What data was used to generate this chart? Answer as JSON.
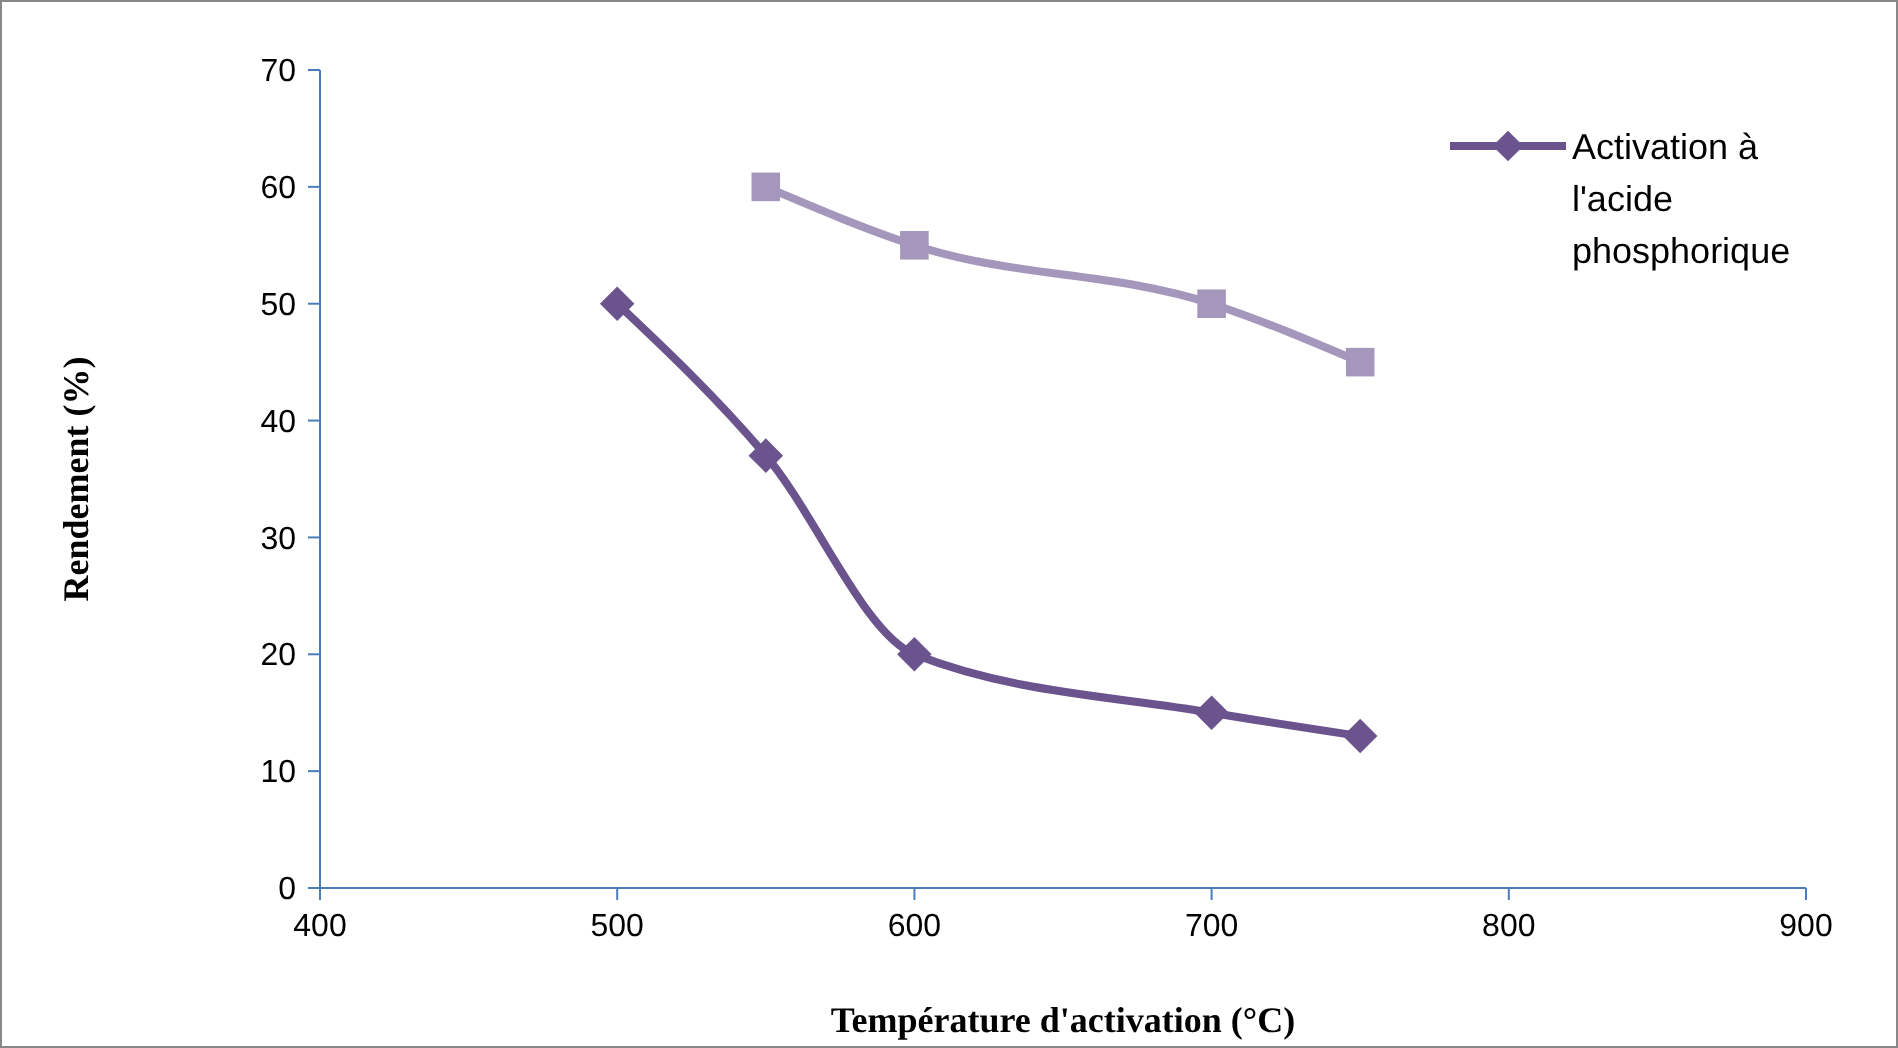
{
  "chart_data": {
    "type": "line",
    "xlabel": "Température d'activation (°C)",
    "ylabel": "Rendement  (%)",
    "xlim": [
      400,
      900
    ],
    "xticks": [
      400,
      500,
      600,
      700,
      800,
      900
    ],
    "ylim": [
      0,
      70
    ],
    "yticks": [
      0,
      10,
      20,
      30,
      40,
      50,
      60,
      70
    ],
    "grid": false,
    "legend": "top right",
    "line_style": "solid",
    "series": [
      {
        "name": "Activation à l'acide phosphorique",
        "color": "#6b548e",
        "marker": "diamond",
        "x": [
          500,
          550,
          600,
          700,
          750
        ],
        "values": [
          50,
          37,
          20,
          15,
          13
        ]
      },
      {
        "color": "#a597bc",
        "marker": "square",
        "x": [
          550,
          600,
          700,
          750
        ],
        "values": [
          60,
          55,
          50,
          45
        ]
      }
    ]
  }
}
